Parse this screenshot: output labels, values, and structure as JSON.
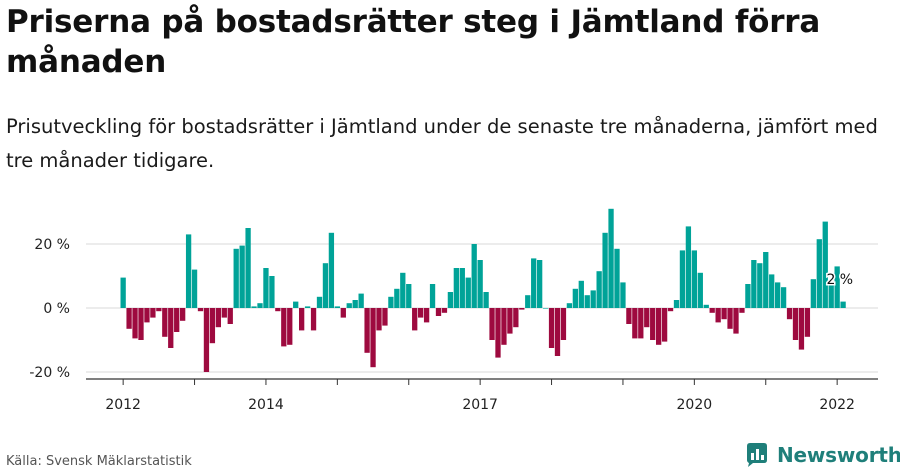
{
  "title": "Priserna på bostadsrätter steg i Jämtland förra månaden",
  "subtitle": "Prisutveckling för bostadsrätter i Jämtland under de senaste tre månaderna, jämfört med tre månader tidigare.",
  "source": "Källa: Svensk Mäklarstatistik",
  "brand": {
    "name": "Newsworthy",
    "icon": "newsworthy-logo-icon",
    "color": "#1f7f7a"
  },
  "colors": {
    "positive": "#00a398",
    "negative": "#9e0a3f"
  },
  "chart_data": {
    "type": "bar",
    "title": "Priserna på bostadsrätter steg i Jämtland förra månaden",
    "ylim": [
      -22,
      32
    ],
    "y_ticks": [
      20,
      0,
      -20
    ],
    "y_tick_labels": [
      "20 %",
      "0 %",
      "-20 %"
    ],
    "x_ticks": [
      "2012",
      "2014",
      "2017",
      "2020",
      "2022"
    ],
    "grid": true,
    "annotation": {
      "label": "2 %",
      "value": 2
    },
    "series": [
      {
        "values": [
          9.5,
          -6.5,
          -9.5,
          -10,
          -4.5,
          -3,
          -1,
          -9,
          -12.5,
          -7.5,
          -4,
          23,
          12,
          -1,
          -20,
          -11,
          -6,
          -3,
          -5,
          18.5,
          19.5,
          25,
          0.5,
          1.5,
          12.5,
          10,
          -1,
          -12,
          -11.5,
          2,
          -7,
          0.5,
          -7,
          3.5,
          14,
          23.5,
          0.5,
          -3,
          1.5,
          2.5,
          4.5,
          -14,
          -18.5,
          -7,
          -5.5,
          3.5,
          6,
          11,
          7.5,
          -7,
          -3,
          -4.5,
          7.5,
          -2.5,
          -1.5,
          5,
          12.5,
          12.5,
          9.5,
          20,
          15,
          5,
          -10,
          -15.5,
          -11.5,
          -8,
          -6,
          -0.5,
          4,
          15.5,
          15,
          0,
          -12.5,
          -15,
          -10,
          1.5,
          6,
          8.5,
          4,
          5.5,
          11.5,
          23.5,
          31,
          18.5,
          8,
          -5,
          -9.5,
          -9.5,
          -6,
          -10,
          -11.5,
          -10.5,
          -1,
          2.5,
          18,
          25.5,
          18,
          11,
          1,
          -1.5,
          -4.5,
          -3.5,
          -6.5,
          -8,
          -1.5,
          7.5,
          15,
          14,
          17.5,
          10.5,
          8,
          6.5,
          -3.5,
          -10,
          -13,
          -9,
          9,
          21.5,
          27,
          8,
          13,
          2
        ]
      }
    ]
  }
}
